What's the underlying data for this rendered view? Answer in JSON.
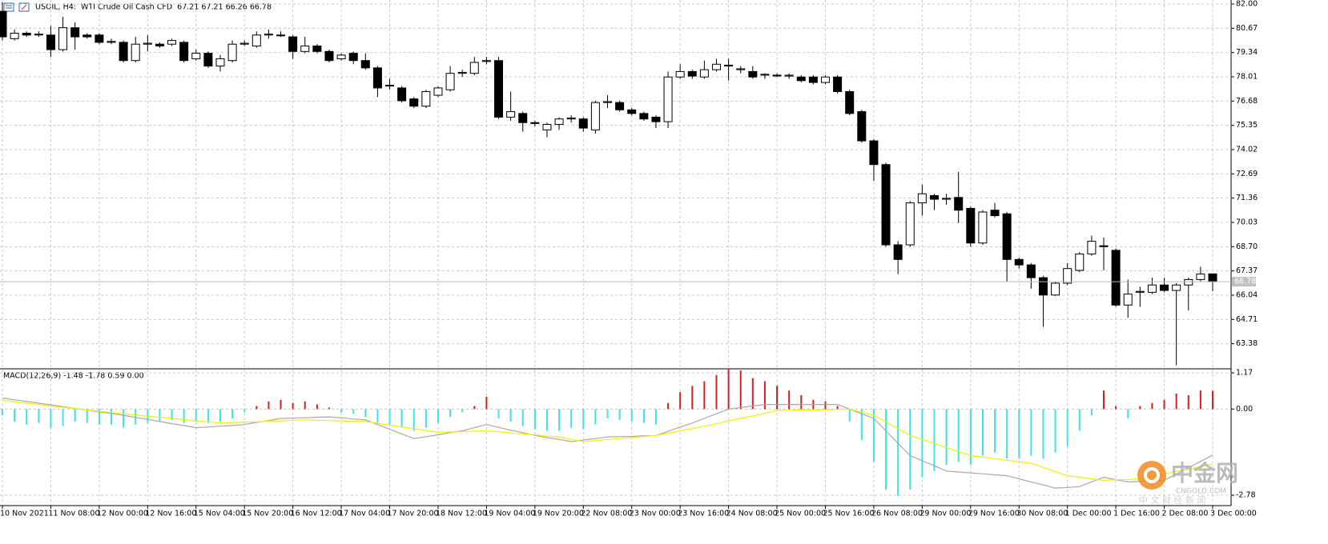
{
  "chart_data": [
    {
      "type": "candlestick",
      "title": "USOIL, H4:  WTI Crude Oil Cash CFD  67.21 67.21 66.26 66.78",
      "categories": [
        "10 Nov 2021",
        null,
        null,
        null,
        "11 Nov 08:00",
        null,
        null,
        null,
        "12 Nov 00:00",
        null,
        null,
        null,
        "12 Nov 16:00",
        null,
        null,
        null,
        "15 Nov 04:00",
        null,
        null,
        null,
        "15 Nov 20:00",
        null,
        null,
        null,
        "16 Nov 12:00",
        null,
        null,
        null,
        "17 Nov 04:00",
        null,
        null,
        null,
        "17 Nov 20:00",
        null,
        null,
        null,
        "18 Nov 12:00",
        null,
        null,
        null,
        "19 Nov 04:00",
        null,
        null,
        null,
        "19 Nov 20:00",
        null,
        null,
        null,
        "22 Nov 08:00",
        null,
        null,
        null,
        "23 Nov 00:00",
        null,
        null,
        null,
        "23 Nov 16:00",
        null,
        null,
        null,
        "24 Nov 08:00",
        null,
        null,
        null,
        "25 Nov 00:00",
        null,
        null,
        null,
        "25 Nov 16:00",
        null,
        null,
        null,
        "26 Nov 08:00",
        null,
        null,
        null,
        "29 Nov 00:00",
        null,
        null,
        null,
        "29 Nov 16:00",
        null,
        null,
        null,
        "30 Nov 08:00",
        null,
        null,
        null,
        "1 Dec 00:00",
        null,
        null,
        null,
        "1 Dec 16:00",
        null,
        null,
        null,
        "2 Dec 08:00",
        null,
        null,
        null,
        "3 Dec 00:00"
      ],
      "open": [
        81.6,
        80.1,
        80.4,
        80.3,
        80.3,
        79.5,
        80.7,
        80.3,
        80.3,
        79.9,
        79.9,
        78.9,
        79.8,
        79.8,
        79.8,
        79.9,
        79.0,
        79.3,
        78.6,
        78.9,
        79.8,
        79.7,
        80.3,
        80.3,
        80.2,
        79.4,
        79.7,
        79.4,
        79.0,
        79.3,
        78.9,
        78.5,
        77.5,
        77.4,
        76.8,
        76.4,
        77.0,
        77.3,
        78.2,
        78.2,
        78.85,
        78.9,
        75.8,
        76.0,
        75.5,
        75.1,
        75.4,
        75.7,
        75.7,
        75.1,
        76.6,
        76.6,
        76.2,
        76.0,
        75.8,
        75.55,
        78.0,
        78.3,
        78.0,
        78.4,
        78.6,
        78.4,
        78.3,
        78.1,
        78.1,
        78.05,
        78.0,
        78.0,
        77.7,
        78.0,
        77.2,
        76.1,
        74.5,
        73.2,
        68.8,
        68.8,
        71.1,
        71.5,
        71.3,
        71.4,
        70.8,
        68.9,
        70.7,
        70.5,
        68.0,
        67.7,
        67.0,
        66.05,
        66.7,
        67.4,
        68.3,
        68.75,
        68.5,
        65.5,
        66.2,
        66.2,
        66.6,
        66.3,
        66.6,
        66.9,
        67.21
      ],
      "high": [
        82.1,
        80.6,
        80.5,
        80.5,
        80.8,
        81.3,
        81.0,
        80.4,
        80.4,
        80.1,
        80.0,
        80.2,
        80.3,
        79.9,
        80.1,
        80.0,
        79.5,
        79.4,
        79.2,
        80.0,
        80.0,
        80.5,
        80.6,
        80.5,
        80.3,
        80.2,
        79.8,
        79.5,
        79.3,
        79.4,
        79.3,
        78.6,
        77.9,
        77.5,
        76.9,
        77.3,
        77.5,
        78.6,
        78.4,
        79.1,
        79.1,
        79.1,
        77.2,
        76.1,
        75.6,
        75.5,
        75.8,
        75.9,
        75.8,
        76.7,
        77.0,
        76.7,
        76.3,
        76.1,
        75.9,
        78.3,
        78.7,
        78.4,
        78.9,
        79.0,
        79.0,
        78.6,
        78.6,
        78.2,
        78.2,
        78.2,
        78.1,
        78.1,
        78.1,
        78.1,
        77.3,
        76.2,
        74.6,
        73.3,
        69.0,
        71.2,
        72.1,
        71.6,
        71.6,
        72.8,
        70.9,
        70.7,
        71.1,
        70.6,
        68.1,
        67.8,
        67.1,
        66.8,
        67.8,
        68.4,
        69.3,
        69.2,
        68.6,
        66.9,
        66.5,
        67.0,
        67.0,
        66.7,
        67.0,
        67.6,
        67.21
      ],
      "low": [
        80.0,
        80.0,
        80.2,
        80.2,
        79.1,
        79.4,
        79.5,
        80.1,
        79.8,
        79.8,
        78.8,
        78.8,
        79.4,
        79.6,
        79.7,
        78.8,
        78.9,
        78.5,
        78.3,
        78.8,
        79.7,
        79.6,
        80.1,
        80.2,
        79.0,
        79.3,
        79.3,
        78.8,
        78.9,
        78.7,
        78.4,
        76.9,
        77.3,
        76.6,
        76.3,
        76.3,
        76.9,
        77.2,
        78.0,
        78.1,
        78.7,
        75.7,
        75.6,
        75.0,
        75.3,
        74.7,
        75.1,
        75.5,
        75.0,
        74.9,
        76.3,
        76.1,
        75.9,
        75.6,
        75.2,
        75.2,
        77.9,
        77.9,
        77.9,
        78.3,
        77.8,
        78.2,
        77.9,
        77.9,
        78.0,
        77.9,
        77.7,
        77.6,
        77.6,
        77.1,
        75.9,
        74.4,
        72.3,
        68.7,
        67.2,
        68.7,
        70.4,
        70.7,
        71.0,
        70.0,
        68.7,
        68.8,
        70.3,
        66.8,
        67.5,
        66.4,
        64.3,
        66.0,
        66.6,
        67.3,
        68.2,
        67.4,
        65.4,
        64.8,
        65.4,
        66.1,
        66.2,
        62.2,
        65.2,
        66.8,
        66.26
      ],
      "close": [
        80.2,
        80.4,
        80.3,
        80.35,
        79.5,
        80.7,
        80.2,
        80.2,
        79.9,
        79.95,
        78.9,
        79.8,
        79.85,
        79.7,
        80.0,
        78.9,
        79.3,
        78.6,
        79.0,
        79.8,
        79.85,
        80.3,
        80.35,
        80.3,
        79.4,
        79.7,
        79.4,
        78.9,
        79.2,
        78.9,
        78.5,
        77.4,
        77.55,
        76.7,
        76.4,
        77.2,
        77.4,
        78.2,
        78.25,
        78.8,
        78.9,
        75.8,
        76.1,
        75.5,
        75.45,
        75.4,
        75.7,
        75.75,
        75.2,
        76.6,
        76.65,
        76.2,
        76.0,
        75.7,
        75.55,
        78.0,
        78.3,
        78.05,
        78.4,
        78.7,
        78.65,
        78.45,
        78.0,
        78.15,
        78.1,
        78.1,
        77.8,
        77.7,
        78.0,
        77.2,
        76.0,
        74.5,
        73.2,
        68.8,
        68.0,
        71.1,
        71.6,
        71.3,
        71.35,
        70.7,
        68.9,
        70.6,
        70.4,
        68.0,
        67.7,
        67.0,
        66.05,
        66.7,
        67.5,
        68.3,
        69.0,
        68.7,
        65.5,
        66.1,
        66.25,
        66.6,
        66.3,
        66.6,
        66.9,
        67.2,
        66.78
      ],
      "up_color": "#ffffff",
      "down_color": "#000000",
      "wick_color": "#000000",
      "last_price": 66.78,
      "ylim": [
        62.05,
        82.22
      ],
      "yticks": [
        {
          "value": 82,
          "label": "82.00"
        },
        80.67,
        79.34,
        78.01,
        76.68,
        75.35,
        74.02,
        72.69,
        71.36,
        70.03,
        {
          "value": 68.7,
          "label": "68.70"
        },
        67.37,
        66.04,
        64.71,
        63.38
      ],
      "grid": true
    },
    {
      "type": "macd",
      "title": "MACD(12,26,9) -1.48 -1.78 0.59 0.00",
      "histogram": [
        -0.2,
        -0.4,
        -0.5,
        -0.45,
        -0.6,
        -0.55,
        -0.4,
        -0.45,
        -0.5,
        -0.5,
        -0.6,
        -0.5,
        -0.45,
        -0.4,
        -0.35,
        -0.45,
        -0.4,
        -0.45,
        -0.4,
        -0.3,
        -0.1,
        0.1,
        0.25,
        0.3,
        0.2,
        0.25,
        0.15,
        0.05,
        -0.1,
        -0.15,
        -0.25,
        -0.45,
        -0.5,
        -0.6,
        -0.7,
        -0.6,
        -0.45,
        -0.25,
        -0.1,
        0.1,
        0.4,
        -0.3,
        -0.4,
        -0.55,
        -0.65,
        -0.7,
        -0.7,
        -0.6,
        -0.65,
        -0.5,
        -0.3,
        -0.35,
        -0.4,
        -0.45,
        -0.5,
        0.2,
        0.55,
        0.75,
        0.9,
        1.1,
        1.3,
        1.25,
        1.0,
        0.9,
        0.75,
        0.6,
        0.45,
        0.3,
        0.25,
        0.1,
        -0.4,
        -1.0,
        -1.7,
        -2.6,
        -2.8,
        -2.6,
        -2.2,
        -2.0,
        -1.8,
        -1.7,
        -1.8,
        -1.5,
        -1.4,
        -1.6,
        -1.6,
        -1.5,
        -1.6,
        -1.4,
        -1.2,
        -0.7,
        -0.2,
        0.6,
        0.1,
        -0.3,
        0.1,
        0.2,
        0.3,
        0.5,
        0.45,
        0.6,
        0.59
      ],
      "up_color": "#d62020",
      "down_color": "#40e0e8",
      "lines": [
        {
          "color": "#a8a8a8",
          "values": [
            0.36,
            0.3,
            0.25,
            0.19,
            0.14,
            0.08,
            0.02,
            -0.03,
            -0.09,
            -0.14,
            -0.2,
            -0.27,
            -0.33,
            -0.4,
            -0.47,
            -0.53,
            -0.6,
            -0.58,
            -0.55,
            -0.53,
            -0.5,
            -0.43,
            -0.37,
            -0.3,
            -0.29,
            -0.28,
            -0.26,
            -0.25,
            -0.28,
            -0.32,
            -0.35,
            -0.5,
            -0.65,
            -0.8,
            -0.95,
            -0.89,
            -0.83,
            -0.76,
            -0.7,
            -0.6,
            -0.5,
            -0.59,
            -0.68,
            -0.76,
            -0.85,
            -0.92,
            -0.98,
            -1.05,
            -1.0,
            -0.95,
            -0.9,
            -0.89,
            -0.88,
            -0.86,
            -0.85,
            -0.72,
            -0.58,
            -0.45,
            -0.3,
            -0.15,
            0.0,
            0.05,
            0.1,
            0.15,
            0.15,
            0.15,
            0.15,
            0.15,
            0.15,
            0.15,
            0.0,
            -0.15,
            -0.3,
            -0.7,
            -1.1,
            -1.5,
            -1.67,
            -1.83,
            -2.0,
            -2.03,
            -2.06,
            -2.09,
            -2.12,
            -2.15,
            -2.25,
            -2.35,
            -2.45,
            -2.55,
            -2.53,
            -2.5,
            -2.35,
            -2.2,
            -2.28,
            -2.35,
            -2.33,
            -2.32,
            -2.3,
            -2.1,
            -1.89,
            -1.69,
            -1.48
          ]
        },
        {
          "color": "#f0f000",
          "values": [
            0.28,
            0.24,
            0.19,
            0.15,
            0.1,
            0.06,
            0.02,
            -0.03,
            -0.07,
            -0.11,
            -0.15,
            -0.19,
            -0.23,
            -0.26,
            -0.3,
            -0.34,
            -0.38,
            -0.41,
            -0.45,
            -0.44,
            -0.42,
            -0.41,
            -0.39,
            -0.38,
            -0.36,
            -0.35,
            -0.36,
            -0.37,
            -0.38,
            -0.39,
            -0.4,
            -0.46,
            -0.52,
            -0.58,
            -0.63,
            -0.69,
            -0.75,
            -0.74,
            -0.73,
            -0.71,
            -0.7,
            -0.73,
            -0.77,
            -0.8,
            -0.83,
            -0.87,
            -0.9,
            -0.98,
            -1.05,
            -1.02,
            -0.98,
            -0.95,
            -0.92,
            -0.88,
            -0.85,
            -0.78,
            -0.7,
            -0.63,
            -0.55,
            -0.47,
            -0.38,
            -0.3,
            -0.22,
            -0.13,
            -0.05,
            -0.04,
            -0.03,
            -0.03,
            -0.02,
            -0.01,
            0.0,
            -0.1,
            -0.2,
            -0.42,
            -0.63,
            -0.85,
            -0.98,
            -1.11,
            -1.24,
            -1.37,
            -1.5,
            -1.55,
            -1.6,
            -1.65,
            -1.7,
            -1.75,
            -1.88,
            -2.02,
            -2.15,
            -2.2,
            -2.25,
            -2.3,
            -2.28,
            -2.27,
            -2.25,
            -2.17,
            -2.09,
            -2.01,
            -1.94,
            -1.86,
            -1.78
          ]
        }
      ],
      "ylim": [
        -3.09,
        1.25
      ],
      "yticks": [
        1.17,
        {
          "value": 0,
          "label": "0.00"
        },
        -2.78
      ],
      "grid": true
    }
  ],
  "watermark": {
    "name": "中金网",
    "url": "CNGOLD.COM",
    "tagline": "中 文 财 经 新 闻"
  }
}
